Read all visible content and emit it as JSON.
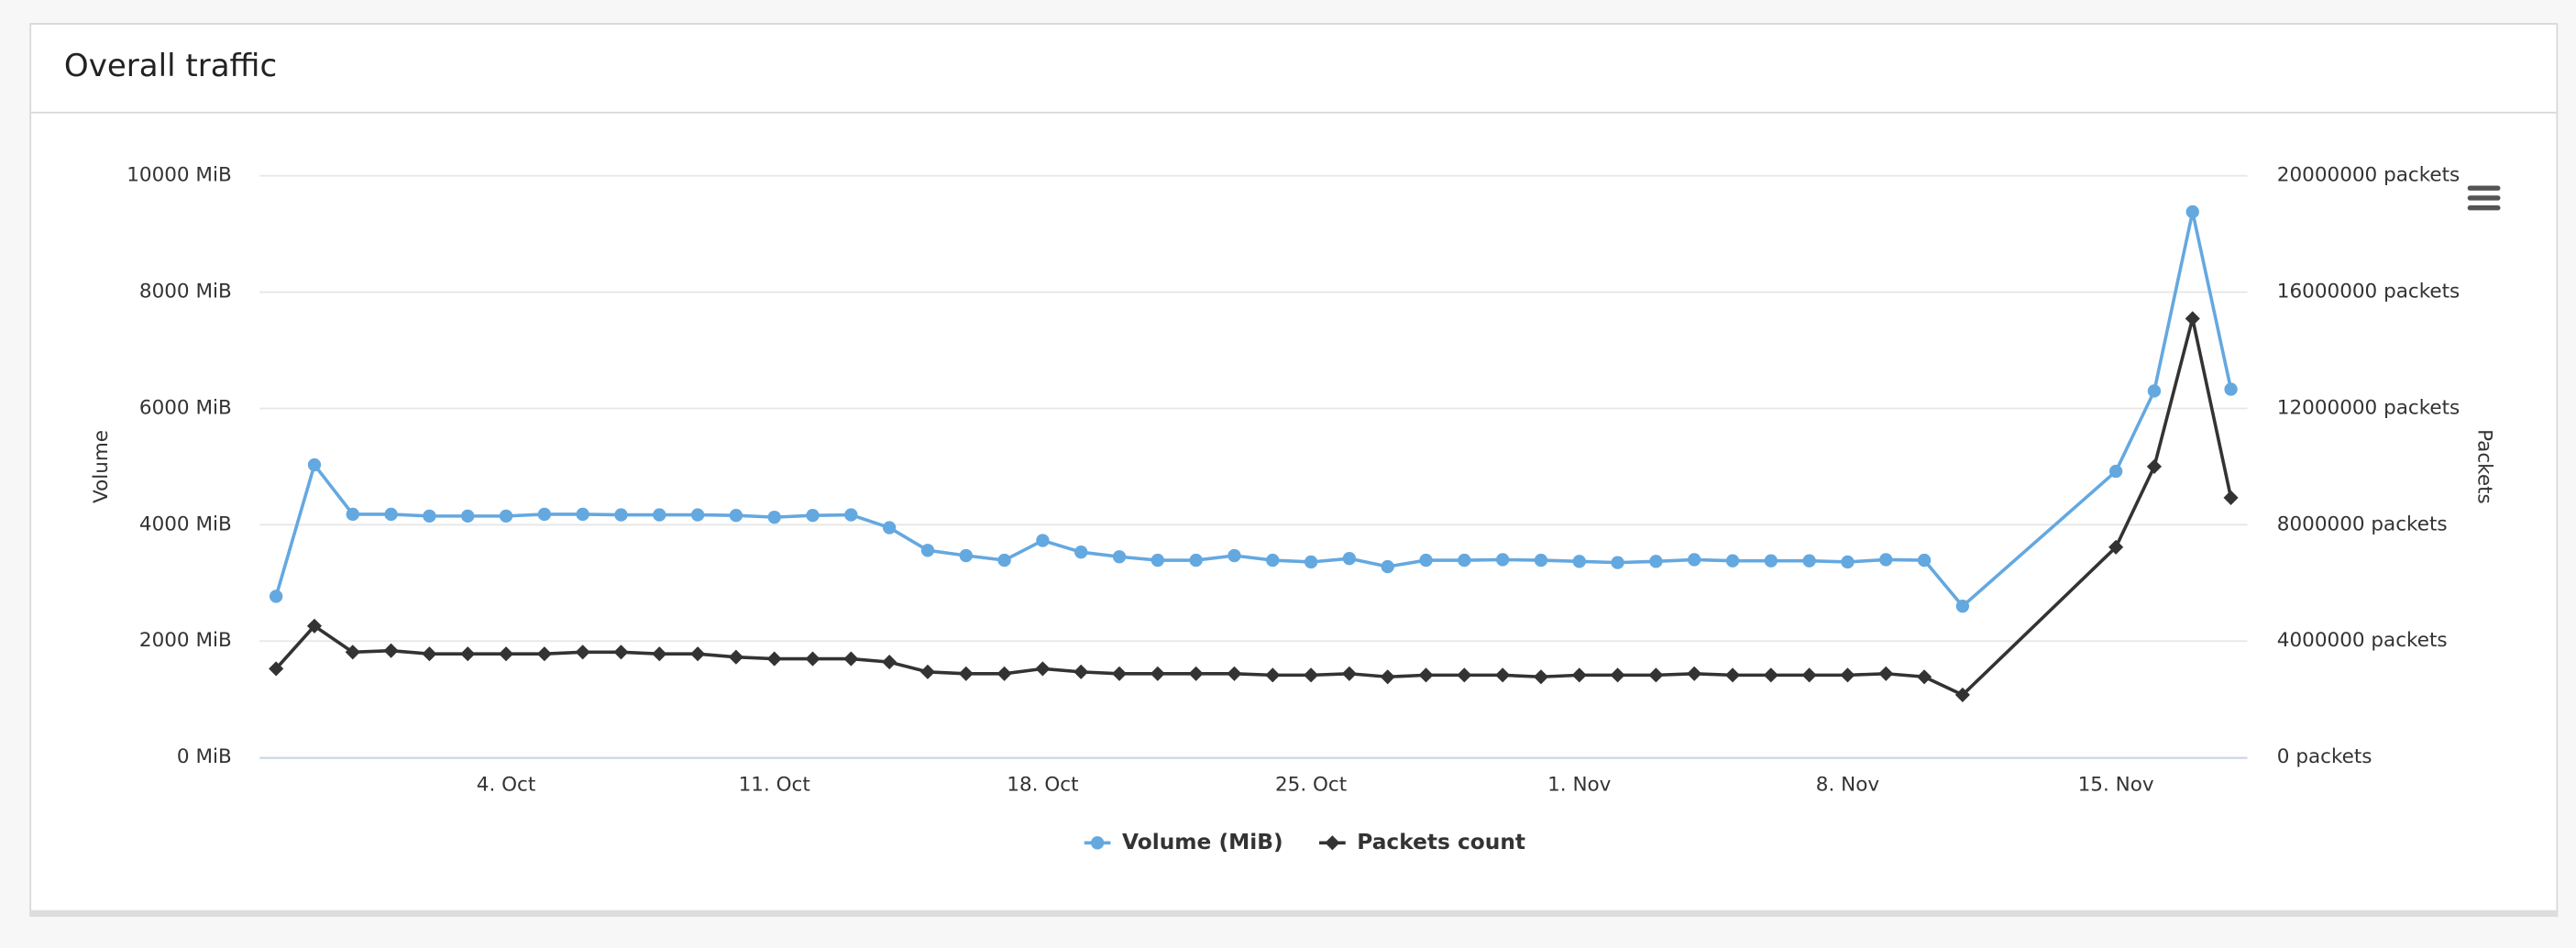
{
  "chart_data": {
    "type": "line",
    "title": "Overall traffic",
    "x": [
      "09-28",
      "09-29",
      "09-30",
      "10-01",
      "10-02",
      "10-03",
      "10-04",
      "10-05",
      "10-06",
      "10-07",
      "10-08",
      "10-09",
      "10-10",
      "10-11",
      "10-12",
      "10-13",
      "10-14",
      "10-15",
      "10-16",
      "10-17",
      "10-18",
      "10-19",
      "10-20",
      "10-21",
      "10-22",
      "10-23",
      "10-24",
      "10-25",
      "10-26",
      "10-27",
      "10-28",
      "10-29",
      "10-30",
      "10-31",
      "11-01",
      "11-02",
      "11-03",
      "11-04",
      "11-05",
      "11-06",
      "11-07",
      "11-08",
      "11-09",
      "11-10",
      "11-11",
      "11-15",
      "11-16",
      "11-17",
      "11-18"
    ],
    "xlim": [
      "09-28",
      "11-18"
    ],
    "xticks": [
      {
        "value": "10-04",
        "label": "4. Oct"
      },
      {
        "value": "10-11",
        "label": "11. Oct"
      },
      {
        "value": "10-18",
        "label": "18. Oct"
      },
      {
        "value": "10-25",
        "label": "25. Oct"
      },
      {
        "value": "11-01",
        "label": "1. Nov"
      },
      {
        "value": "11-08",
        "label": "8. Nov"
      },
      {
        "value": "11-15",
        "label": "15. Nov"
      }
    ],
    "ylabel": "Volume",
    "y2label": "Packets",
    "ylim": [
      0,
      10000
    ],
    "yticks": [
      {
        "value": 0,
        "label": "0 MiB"
      },
      {
        "value": 2000,
        "label": "2000 MiB"
      },
      {
        "value": 4000,
        "label": "4000 MiB"
      },
      {
        "value": 6000,
        "label": "6000 MiB"
      },
      {
        "value": 8000,
        "label": "8000 MiB"
      },
      {
        "value": 10000,
        "label": "10000 MiB"
      }
    ],
    "y2lim": [
      0,
      20000000
    ],
    "y2ticks": [
      {
        "value": 0,
        "label": "0 packets"
      },
      {
        "value": 4000000,
        "label": "4000000 packets"
      },
      {
        "value": 8000000,
        "label": "8000000 packets"
      },
      {
        "value": 12000000,
        "label": "12000000 packets"
      },
      {
        "value": 16000000,
        "label": "16000000 packets"
      },
      {
        "value": 20000000,
        "label": "20000000 packets"
      }
    ],
    "grid": true,
    "series": [
      {
        "name": "Volume (MiB)",
        "color": "#64a8e0",
        "marker": "circle",
        "values": [
          2770,
          5030,
          4180,
          4180,
          4150,
          4150,
          4150,
          4180,
          4180,
          4170,
          4170,
          4170,
          4160,
          4130,
          4160,
          4170,
          3950,
          3560,
          3470,
          3390,
          3730,
          3530,
          3450,
          3390,
          3390,
          3470,
          3390,
          3360,
          3420,
          3280,
          3390,
          3390,
          3400,
          3390,
          3370,
          3350,
          3370,
          3400,
          3380,
          3380,
          3380,
          3360,
          3400,
          3390,
          2600,
          4920,
          6300,
          9380,
          6330
        ]
      },
      {
        "name": "Packets count",
        "color": "#333333",
        "marker": "diamond",
        "axis": "y2",
        "values": [
          3050000,
          4520000,
          3620000,
          3670000,
          3560000,
          3560000,
          3560000,
          3560000,
          3620000,
          3620000,
          3560000,
          3560000,
          3450000,
          3390000,
          3390000,
          3390000,
          3280000,
          2940000,
          2880000,
          2880000,
          3050000,
          2940000,
          2880000,
          2880000,
          2880000,
          2880000,
          2830000,
          2830000,
          2880000,
          2770000,
          2830000,
          2830000,
          2830000,
          2770000,
          2830000,
          2830000,
          2830000,
          2880000,
          2830000,
          2830000,
          2830000,
          2830000,
          2880000,
          2770000,
          2150000,
          7230000,
          10000000,
          15090000,
          8930000
        ]
      }
    ]
  }
}
